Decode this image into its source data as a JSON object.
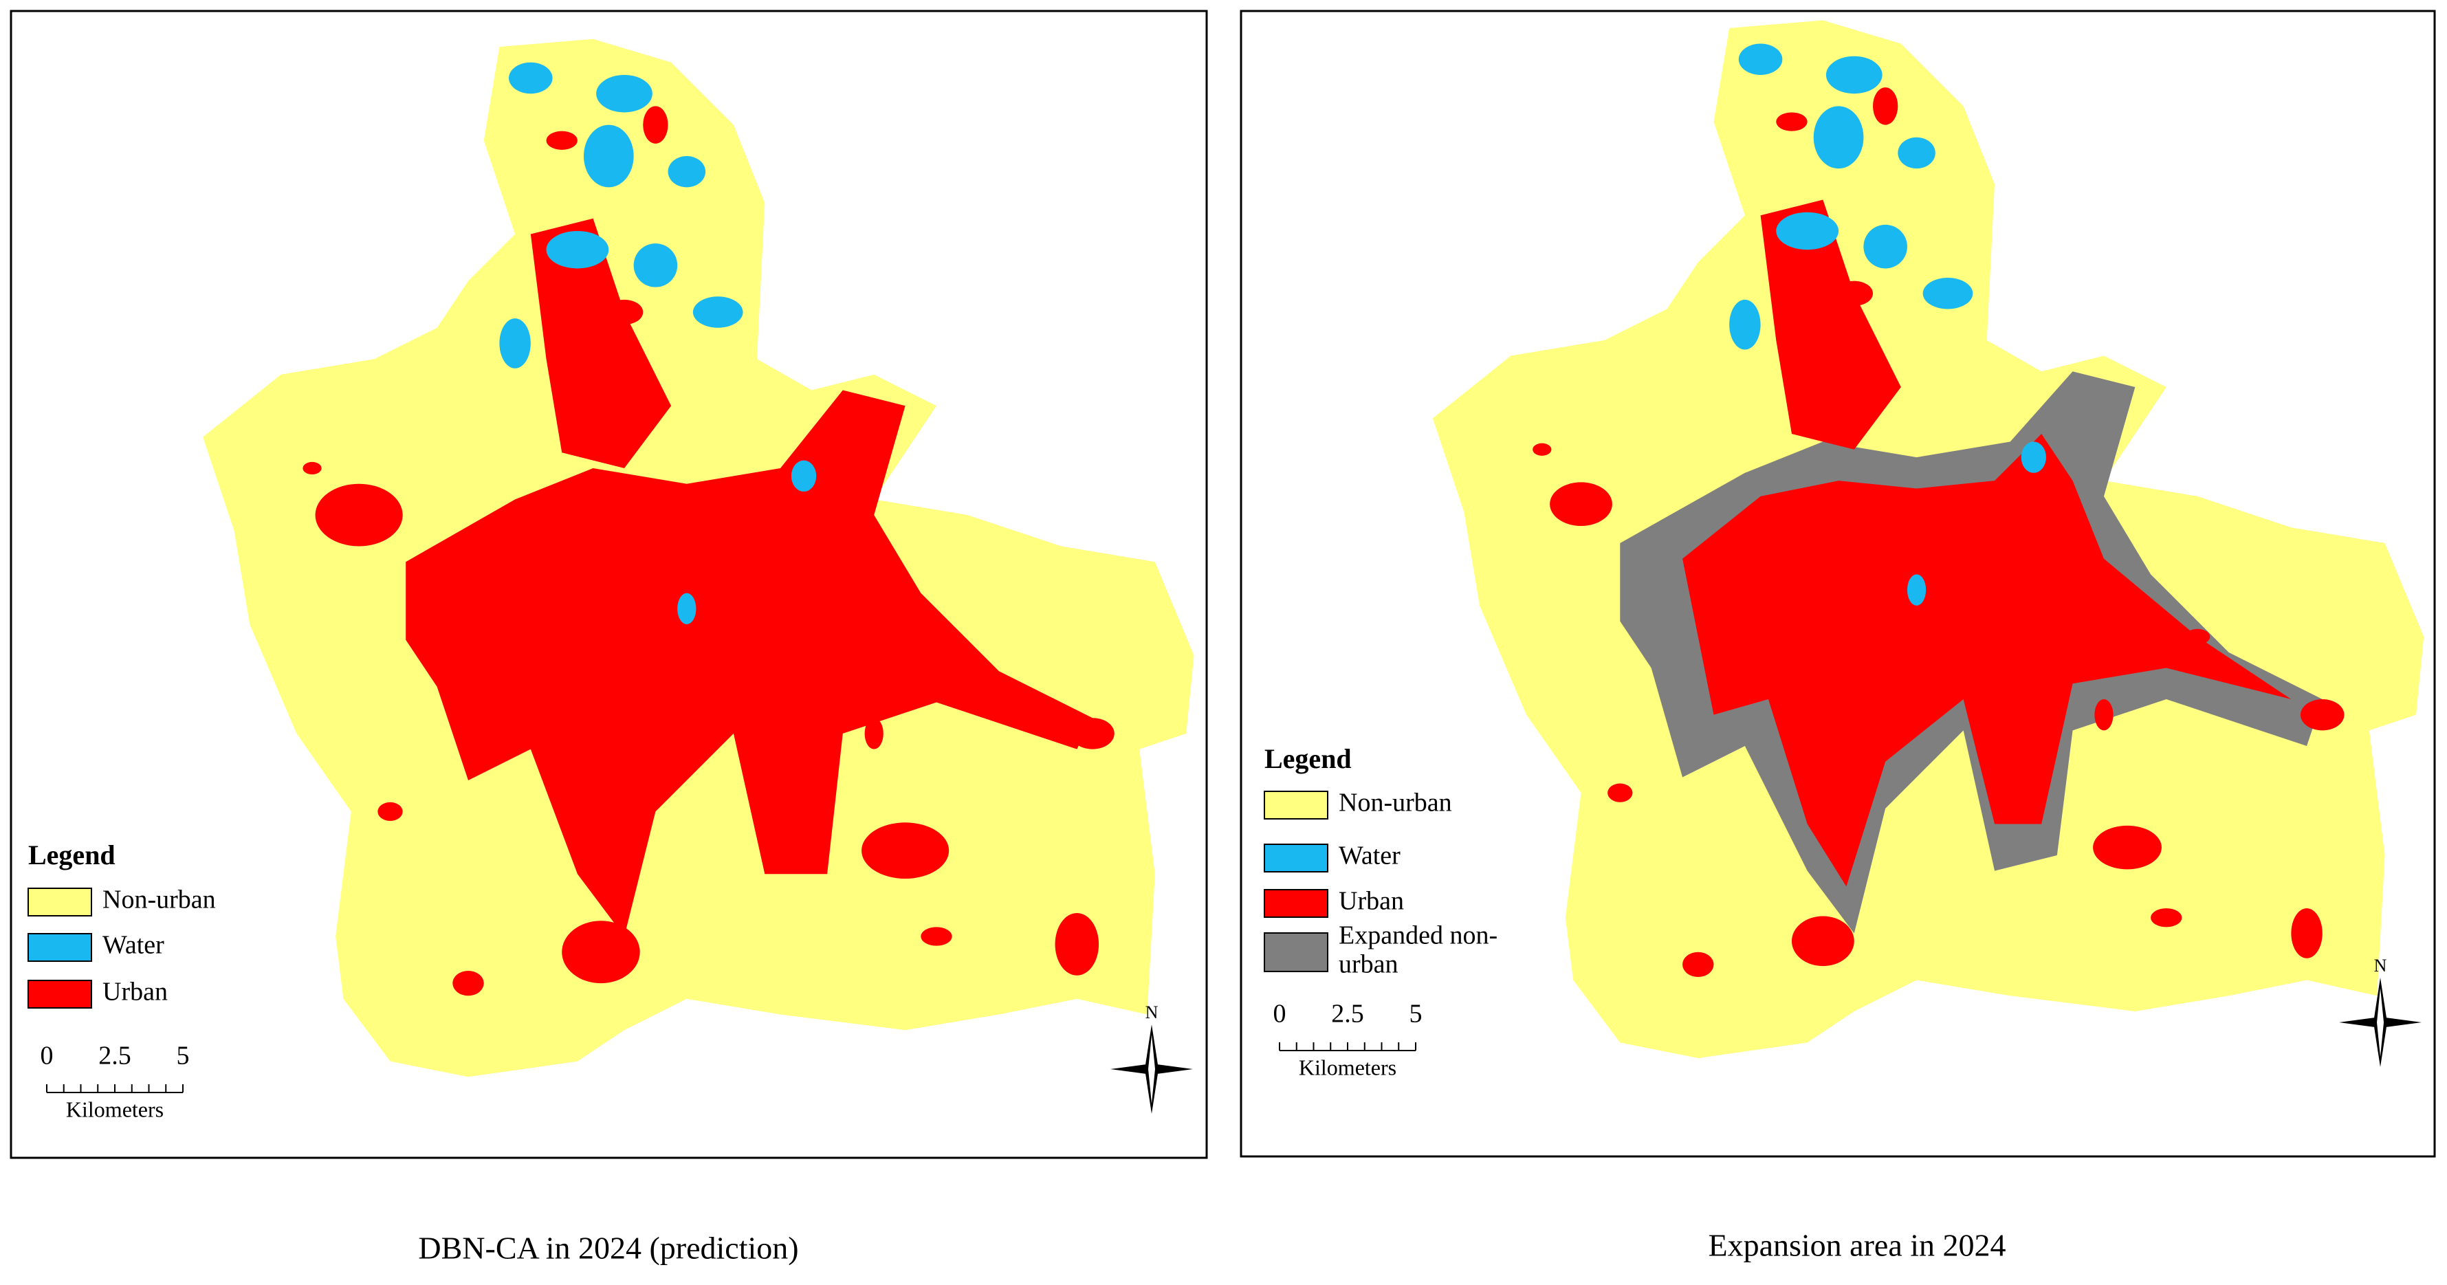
{
  "panels": [
    {
      "legend": {
        "title": "Legend",
        "items": [
          {
            "lines": [
              "Non-urban"
            ],
            "color": "#ffff80"
          },
          {
            "lines": [
              "Water"
            ],
            "color": "#1ab8f0"
          },
          {
            "lines": [
              "Urban"
            ],
            "color": "#ff0000"
          }
        ]
      },
      "scale_bar": {
        "ticks": [
          0,
          2.5,
          5
        ],
        "unit": "Kilometers"
      },
      "north": "N",
      "caption": "DBN-CA in 2024 (prediction)"
    },
    {
      "legend": {
        "title": "Legend",
        "items": [
          {
            "lines": [
              "Non-urban"
            ],
            "color": "#ffff80"
          },
          {
            "lines": [
              "Water"
            ],
            "color": "#1ab8f0"
          },
          {
            "lines": [
              "Urban"
            ],
            "color": "#ff0000"
          },
          {
            "lines": [
              "Expanded non-",
              "urban"
            ],
            "color": "#7f7f7f"
          }
        ]
      },
      "scale_bar": {
        "ticks": [
          0,
          2.5,
          5
        ],
        "unit": "Kilometers"
      },
      "north": "N",
      "caption": "Expansion area in 2024"
    }
  ]
}
